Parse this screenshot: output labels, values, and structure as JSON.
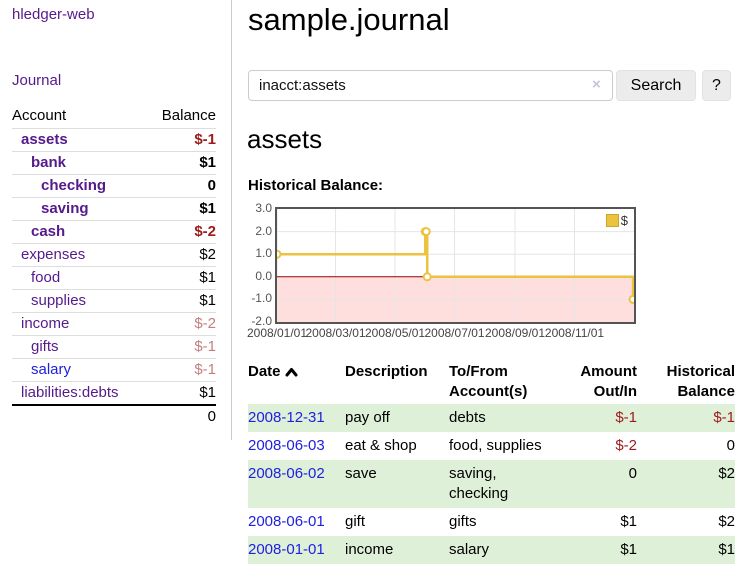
{
  "app": {
    "brand": "hledger-web",
    "nav": {
      "journal": "Journal"
    }
  },
  "sidebar": {
    "accounts": {
      "headers": {
        "account": "Account",
        "balance": "Balance"
      },
      "rows": [
        {
          "name": "assets",
          "level": 0,
          "bold": true,
          "balance": "$-1"
        },
        {
          "name": "bank",
          "level": 1,
          "bold": true,
          "balance": "$1"
        },
        {
          "name": "checking",
          "level": 2,
          "bold": true,
          "balance": "0"
        },
        {
          "name": "saving",
          "level": 2,
          "bold": true,
          "balance": "$1"
        },
        {
          "name": "cash",
          "level": 1,
          "bold": true,
          "balance": "$-2"
        },
        {
          "name": "expenses",
          "level": 0,
          "bold": false,
          "balance": "$2"
        },
        {
          "name": "food",
          "level": 1,
          "bold": false,
          "balance": "$1"
        },
        {
          "name": "supplies",
          "level": 1,
          "bold": false,
          "balance": "$1"
        },
        {
          "name": "income",
          "level": 0,
          "bold": false,
          "balance": "$-2"
        },
        {
          "name": "gifts",
          "level": 1,
          "bold": false,
          "balance": "$-1"
        },
        {
          "name": "salary",
          "level": 1,
          "bold": false,
          "balance": "$-1",
          "link_color": "blue"
        },
        {
          "name": "liabilities:debts",
          "level": 0,
          "bold": false,
          "balance": "$1"
        }
      ],
      "total": "0"
    }
  },
  "main": {
    "title": "sample.journal",
    "search": {
      "value": "inacct:assets",
      "clear_icon": "×",
      "search_button": "Search",
      "help_button": "?"
    },
    "account_heading": "assets",
    "chart_label": "Historical Balance:"
  },
  "register": {
    "headers": {
      "date": "Date",
      "description": "Description",
      "accounts": "To/From Account(s)",
      "amount": "Amount Out/In",
      "balance": "Historical Balance"
    },
    "sort": "date-ascending",
    "rows": [
      {
        "date": "2008-12-31",
        "description": "pay off",
        "accounts": "debts",
        "amount": "$-1",
        "balance": "$-1"
      },
      {
        "date": "2008-06-03",
        "description": "eat & shop",
        "accounts": "food, supplies",
        "amount": "$-2",
        "balance": "0"
      },
      {
        "date": "2008-06-02",
        "description": "save",
        "accounts": "saving, checking",
        "amount": "0",
        "balance": "$2"
      },
      {
        "date": "2008-06-01",
        "description": "gift",
        "accounts": "gifts",
        "amount": "$1",
        "balance": "$2"
      },
      {
        "date": "2008-01-01",
        "description": "income",
        "accounts": "salary",
        "amount": "$1",
        "balance": "$1"
      }
    ]
  },
  "chart_data": {
    "type": "line",
    "step": true,
    "title": "Historical Balance:",
    "x_range": [
      "2008-01-01",
      "2009-01-01"
    ],
    "ylim": [
      -2.0,
      3.0
    ],
    "y_ticks": [
      "3.0",
      "2.0",
      "1.0",
      "0.0",
      "-1.0",
      "-2.0"
    ],
    "x_ticks": [
      "2008/01/01",
      "2008/03/01",
      "2008/05/01",
      "2008/07/01",
      "2008/09/01",
      "2008/11/01"
    ],
    "grid": true,
    "legend_position": "top-right",
    "series": [
      {
        "name": "$",
        "color": "#edc240",
        "points": [
          {
            "x": "2008-01-01",
            "y": 1
          },
          {
            "x": "2008-06-01",
            "y": 2
          },
          {
            "x": "2008-06-02",
            "y": 2
          },
          {
            "x": "2008-06-03",
            "y": 0
          },
          {
            "x": "2008-12-31",
            "y": -1
          }
        ]
      }
    ]
  },
  "colors": {
    "purple": "#551a8b",
    "blue": "#2020e0",
    "negative": "#9c1b1b",
    "negative_dim": "#c47f7f",
    "row_green": "#dff0d8",
    "series_gold": "#edc240",
    "negative_fill": "#ffdede",
    "zero_line": "#990000"
  }
}
